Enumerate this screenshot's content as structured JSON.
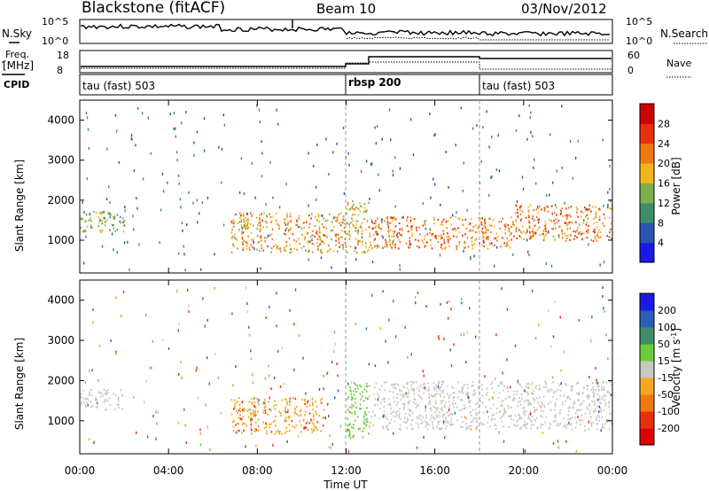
{
  "header": {
    "site": "Blackstone (fitACF)",
    "beam": "Beam 10",
    "date": "03/Nov/2012"
  },
  "panels": {
    "noise": {
      "left_label": "N.Sky",
      "left_ticks": [
        "10^5",
        "10^0"
      ],
      "right_label": "N.Search",
      "right_ticks": [
        "10^5",
        "10^0"
      ]
    },
    "freq": {
      "left_label_1": "Freq.",
      "left_label_2": "[MHz]",
      "left_ticks": [
        "18",
        "8"
      ],
      "right_label": "Nave",
      "right_ticks": [
        "60",
        "0"
      ]
    },
    "cpid": {
      "label": "CPID",
      "segments": [
        {
          "name": "tau (fast) 503",
          "start_hour": 0
        },
        {
          "name": "rbsp 200",
          "start_hour": 12
        },
        {
          "name": "tau (fast) 503",
          "start_hour": 18
        }
      ]
    }
  },
  "chart_data": [
    {
      "type": "heatmap",
      "panel": "power",
      "ylabel": "Slant Range [km]",
      "xlabel": "Time UT",
      "ylim": [
        180,
        4500
      ],
      "y_ticks": [
        1000,
        2000,
        3000,
        4000
      ],
      "xlim_hours": [
        0,
        24
      ],
      "x_tick_labels": [
        "00:00",
        "04:00",
        "08:00",
        "12:00",
        "16:00",
        "20:00",
        "00:00"
      ],
      "colorbar": {
        "label": "Power [dB]",
        "ticks": [
          "4",
          "8",
          "12",
          "16",
          "20",
          "24",
          "28"
        ],
        "colors": [
          "#1a1ae6",
          "#2a55b0",
          "#3f8c6a",
          "#7fae4c",
          "#f2b61c",
          "#f07a12",
          "#e8300e",
          "#cc0000"
        ]
      },
      "echo_bands": [
        {
          "start_hour": 0.0,
          "end_hour": 2.0,
          "range_low_km": 1200,
          "range_high_km": 1750,
          "power_db": 14
        },
        {
          "start_hour": 6.8,
          "end_hour": 12.0,
          "range_low_km": 700,
          "range_high_km": 1700,
          "power_db": 20
        },
        {
          "start_hour": 12.0,
          "end_hour": 13.0,
          "range_low_km": 700,
          "range_high_km": 2000,
          "power_db": 18
        },
        {
          "start_hour": 13.0,
          "end_hour": 19.5,
          "range_low_km": 800,
          "range_high_km": 1600,
          "power_db": 22
        },
        {
          "start_hour": 19.5,
          "end_hour": 24.0,
          "range_low_km": 1000,
          "range_high_km": 1900,
          "power_db": 22
        }
      ]
    },
    {
      "type": "heatmap",
      "panel": "velocity",
      "ylabel": "Slant Range [km]",
      "xlabel": "Time UT",
      "ylim": [
        180,
        4500
      ],
      "y_ticks": [
        1000,
        2000,
        3000,
        4000
      ],
      "xlim_hours": [
        0,
        24
      ],
      "x_tick_labels": [
        "00:00",
        "04:00",
        "08:00",
        "12:00",
        "16:00",
        "20:00",
        "00:00"
      ],
      "colorbar": {
        "label_main": "Velocity [m s",
        "label_sup": "-1",
        "label_end": "]",
        "ticks": [
          "200",
          "100",
          "50",
          "15",
          "-15",
          "-50",
          "-100",
          "-200"
        ],
        "colors": [
          "#1a1ae6",
          "#2a5fb8",
          "#3f8c6a",
          "#6ccc3a",
          "#c8c8c0",
          "#f5a623",
          "#f07a12",
          "#e8300e",
          "#dd0000"
        ]
      },
      "echo_bands": [
        {
          "start_hour": 0.0,
          "end_hour": 2.0,
          "range_low_km": 1300,
          "range_high_km": 1800,
          "velocity_ms": 0
        },
        {
          "start_hour": 6.8,
          "end_hour": 11.0,
          "range_low_km": 700,
          "range_high_km": 1600,
          "velocity_ms": -40
        },
        {
          "start_hour": 12.0,
          "end_hour": 13.0,
          "range_low_km": 600,
          "range_high_km": 2000,
          "velocity_ms": 30
        },
        {
          "start_hour": 13.0,
          "end_hour": 24.0,
          "range_low_km": 800,
          "range_high_km": 2000,
          "velocity_ms": 0
        }
      ]
    }
  ]
}
